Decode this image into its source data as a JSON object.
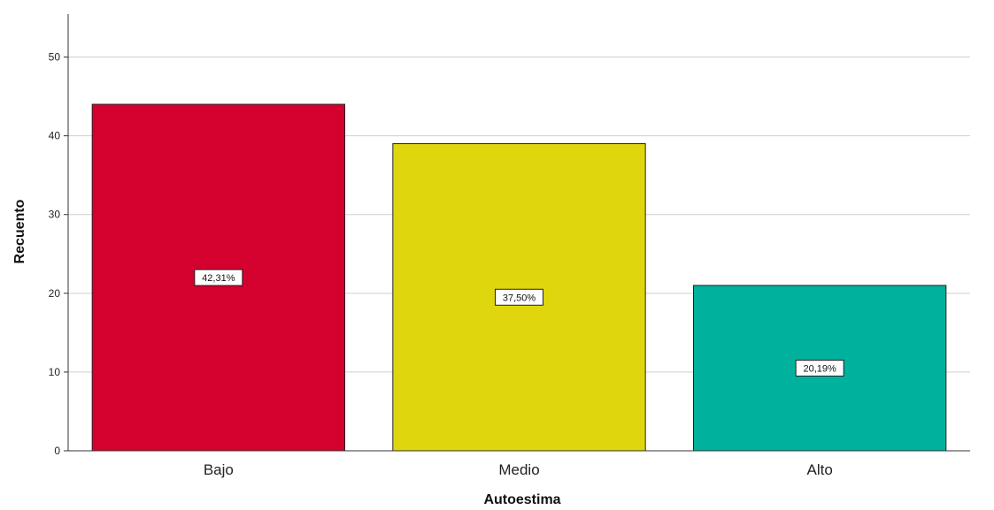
{
  "chart_data": {
    "type": "bar",
    "categories": [
      "Bajo",
      "Medio",
      "Alto"
    ],
    "values": [
      44,
      39,
      21
    ],
    "data_labels": [
      "42,31%",
      "37,50%",
      "20,19%"
    ],
    "colors": [
      "#d4002e",
      "#e0d60d",
      "#00b19d"
    ],
    "xlabel": "Autoestima",
    "ylabel": "Recuento",
    "ylim": [
      0,
      55
    ],
    "yticks": [
      0,
      10,
      20,
      30,
      40,
      50
    ],
    "grid": true,
    "legend": "none"
  }
}
